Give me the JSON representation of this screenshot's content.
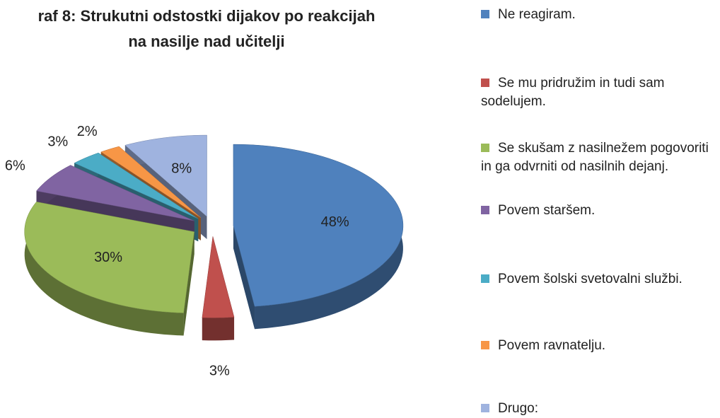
{
  "chart_data": {
    "type": "pie",
    "title": [
      "raf 8: Strukutni odstostki dijakov po reakcijah",
      "na nasilje nad učitelji"
    ],
    "categories": [
      "Ne reagiram.",
      "Se mu pridružim in tudi sam sodelujem.",
      "Se skušam z nasilnežem pogovoriti in ga odvrniti od nasilnih dejanj.",
      "Povem staršem.",
      "Povem šolski svetovalni službi.",
      "Povem ravnatelju.",
      "Drugo:"
    ],
    "values": [
      48,
      3,
      30,
      6,
      3,
      2,
      8
    ],
    "value_labels": [
      "48%",
      "3%",
      "30%",
      "6%",
      "3%",
      "2%",
      "8%"
    ],
    "colors": [
      "#4f81bd",
      "#c0504d",
      "#9bbb59",
      "#8064a2",
      "#4bacc6",
      "#f79646",
      "#9fb3df"
    ],
    "legend": "right"
  }
}
